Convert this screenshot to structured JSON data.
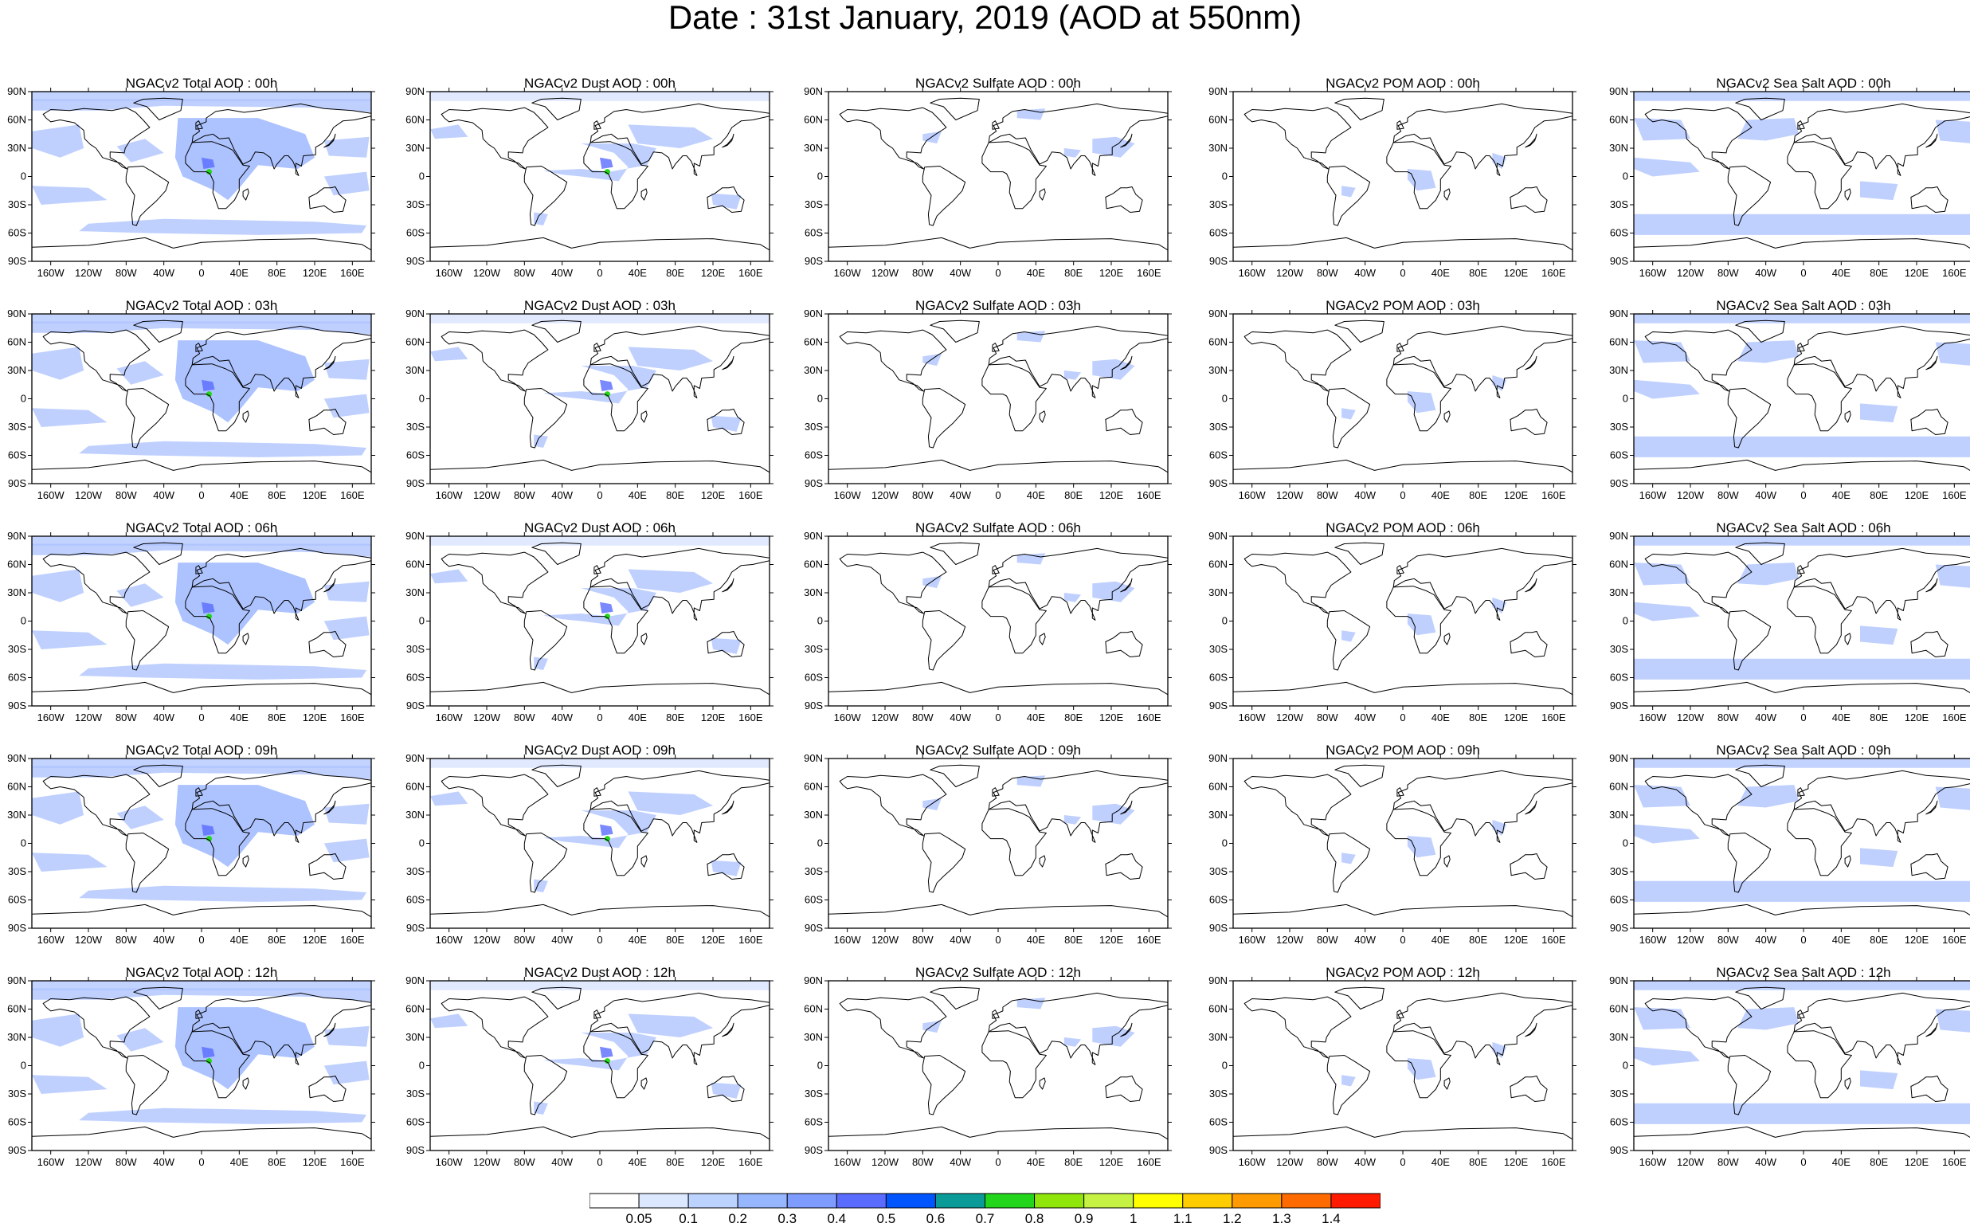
{
  "title": "Date : 31st January, 2019 (AOD at 550nm)",
  "panel_titles": [
    [
      "NGACv2 Total AOD : 00h",
      "NGACv2 Dust AOD : 00h",
      "NGACv2 Sulfate AOD : 00h",
      "NGACv2 POM AOD : 00h",
      "NGACv2 Sea Salt AOD : 00h"
    ],
    [
      "NGACv2 Total AOD : 03h",
      "NGACv2 Dust AOD : 03h",
      "NGACv2 Sulfate AOD : 03h",
      "NGACv2 POM AOD : 03h",
      "NGACv2 Sea Salt AOD : 03h"
    ],
    [
      "NGACv2 Total AOD : 06h",
      "NGACv2 Dust AOD : 06h",
      "NGACv2 Sulfate AOD : 06h",
      "NGACv2 POM AOD : 06h",
      "NGACv2 Sea Salt AOD : 06h"
    ],
    [
      "NGACv2 Total AOD : 09h",
      "NGACv2 Dust AOD : 09h",
      "NGACv2 Sulfate AOD : 09h",
      "NGACv2 POM AOD : 09h",
      "NGACv2 Sea Salt  AOD : 09h"
    ],
    [
      "NGACv2 Total AOD : 12h",
      "NGACv2 Dust AOD : 12h",
      "NGACv2 Sulfate AOD : 12h",
      "NGACv2 POM  AOD : 12h",
      "NGACv2 Sea Salt  AOD : 12h"
    ]
  ],
  "lat_labels": [
    "90N",
    "60N",
    "30N",
    "0",
    "30S",
    "60S",
    "90S"
  ],
  "lon_labels": [
    "160W",
    "120W",
    "80W",
    "40W",
    "0",
    "40E",
    "80E",
    "120E",
    "160E"
  ],
  "colorbar": {
    "labels": [
      "0.05",
      "0.1",
      "0.2",
      "0.3",
      "0.4",
      "0.5",
      "0.6",
      "0.7",
      "0.8",
      "0.9",
      "1",
      "1.1",
      "1.2",
      "1.3",
      "1.4"
    ],
    "colors": [
      "#ffffff",
      "#dce8ff",
      "#bcd2ff",
      "#96b6ff",
      "#7e9cff",
      "#5a6cff",
      "#0055ff",
      "#0a9b98",
      "#23d61b",
      "#90e50a",
      "#c6f244",
      "#ffff00",
      "#ffcc00",
      "#ff9a00",
      "#ff6b00",
      "#ff1a00"
    ]
  },
  "colors": {
    "land_outline": "#000000",
    "aod_fill": "#a9c0ff"
  }
}
